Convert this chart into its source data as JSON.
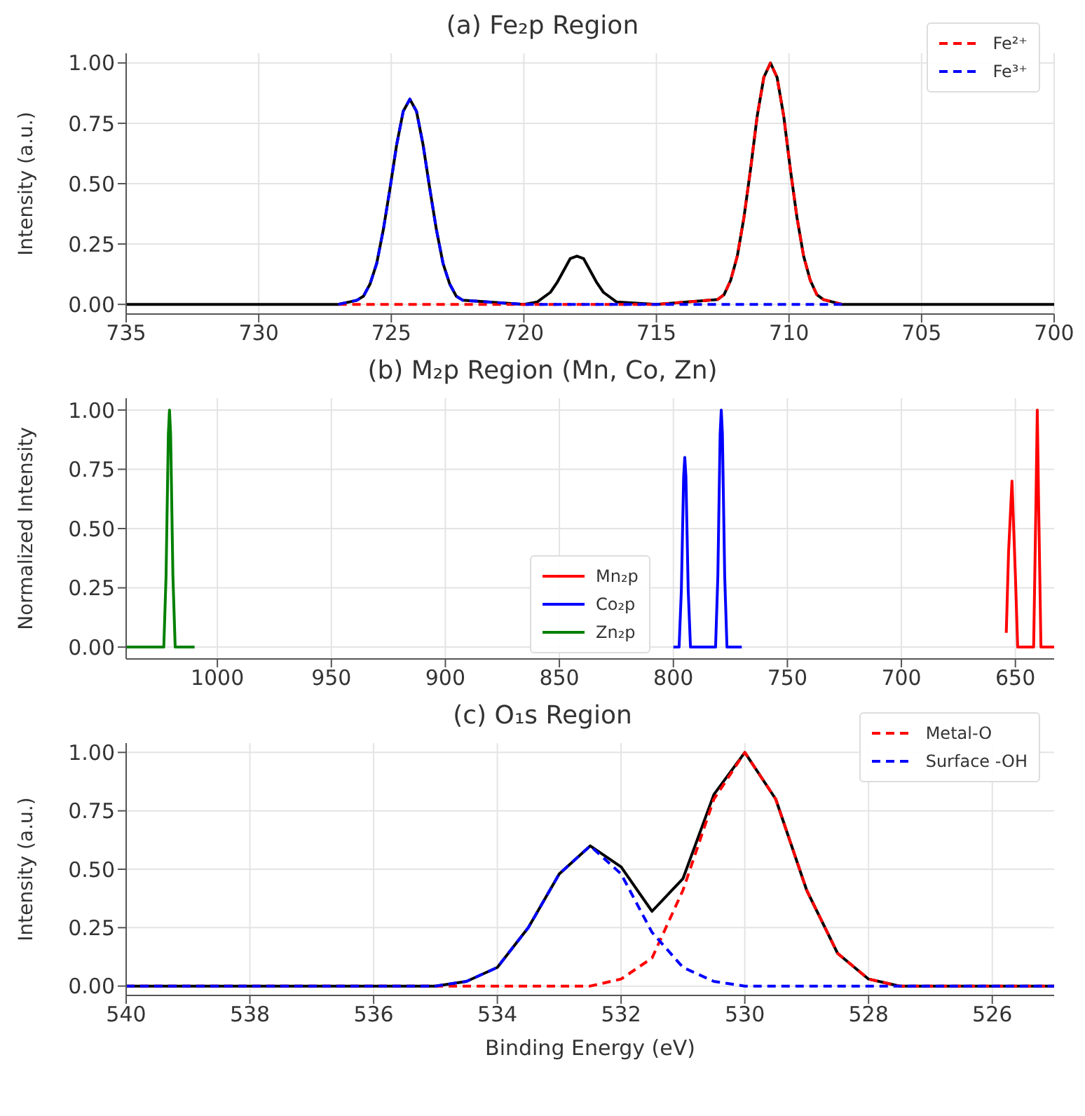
{
  "chart_data": [
    {
      "type": "line",
      "title": "(a) Fe₂p Region",
      "ylabel": "Intensity (a.u.)",
      "xlim": [
        735,
        700
      ],
      "xticks": [
        735,
        730,
        725,
        720,
        715,
        710,
        705,
        700
      ],
      "ylim": [
        -0.04,
        1.04
      ],
      "yticks": [
        {
          "value": 0,
          "label": "0.00"
        },
        {
          "value": 0.25,
          "label": "0.25"
        },
        {
          "value": 0.5,
          "label": "0.50"
        },
        {
          "value": 0.75,
          "label": "0.75"
        },
        {
          "value": 1,
          "label": "1.00"
        }
      ],
      "grid": true,
      "legend": "top right",
      "series": [
        {
          "color": "#000000",
          "line_style": "solid",
          "x": [
            735,
            727,
            726.3,
            726.05,
            725.8,
            725.55,
            725.3,
            725.05,
            724.8,
            724.55,
            724.3,
            724.05,
            723.8,
            723.55,
            723.3,
            723.05,
            722.8,
            722.55,
            722.3,
            720,
            719.5,
            719,
            718.75,
            718.5,
            718.25,
            718,
            717.75,
            717.5,
            717.25,
            717,
            716.5,
            715,
            712.7,
            712.45,
            712.2,
            711.95,
            711.7,
            711.45,
            711.2,
            710.95,
            710.7,
            710.45,
            710.2,
            709.95,
            709.7,
            709.45,
            709.2,
            708.95,
            708.7,
            708,
            700
          ],
          "values": [
            0,
            0,
            0.017,
            0.034,
            0.085,
            0.17,
            0.31,
            0.48,
            0.66,
            0.8,
            0.85,
            0.8,
            0.66,
            0.48,
            0.31,
            0.17,
            0.085,
            0.034,
            0.017,
            0,
            0.01,
            0.05,
            0.09,
            0.14,
            0.19,
            0.2,
            0.19,
            0.14,
            0.09,
            0.05,
            0.01,
            0,
            0.02,
            0.04,
            0.1,
            0.2,
            0.36,
            0.56,
            0.78,
            0.94,
            1,
            0.94,
            0.78,
            0.56,
            0.36,
            0.2,
            0.1,
            0.04,
            0.02,
            0,
            0
          ]
        },
        {
          "name": "Fe²⁺",
          "color": "#ff0000",
          "line_style": "dashed",
          "x": [
            727,
            715,
            712.7,
            712.45,
            712.2,
            711.95,
            711.7,
            711.45,
            711.2,
            710.95,
            710.7,
            710.45,
            710.2,
            709.95,
            709.7,
            709.45,
            709.2,
            708.95,
            708.7,
            708
          ],
          "values": [
            0,
            0,
            0.02,
            0.04,
            0.1,
            0.2,
            0.36,
            0.56,
            0.78,
            0.94,
            1,
            0.94,
            0.78,
            0.56,
            0.36,
            0.2,
            0.1,
            0.04,
            0.02,
            0
          ]
        },
        {
          "name": "Fe³⁺",
          "color": "#0000ff",
          "line_style": "dashed",
          "x": [
            727,
            726.3,
            726.05,
            725.8,
            725.55,
            725.3,
            725.05,
            724.8,
            724.55,
            724.3,
            724.05,
            723.8,
            723.55,
            723.3,
            723.05,
            722.8,
            722.55,
            722.3,
            720,
            708
          ],
          "values": [
            0,
            0.017,
            0.034,
            0.085,
            0.17,
            0.31,
            0.48,
            0.66,
            0.8,
            0.85,
            0.8,
            0.66,
            0.48,
            0.31,
            0.17,
            0.085,
            0.034,
            0.017,
            0,
            0
          ]
        }
      ]
    },
    {
      "type": "line",
      "title": "(b) M₂p Region (Mn, Co, Zn)",
      "ylabel": "Normalized Intensity",
      "xlim": [
        1040,
        633
      ],
      "xticks": [
        1000,
        950,
        900,
        850,
        800,
        750,
        700,
        650
      ],
      "ylim": [
        -0.05,
        1.05
      ],
      "yticks": [
        {
          "value": 0,
          "label": "0.00"
        },
        {
          "value": 0.25,
          "label": "0.25"
        },
        {
          "value": 0.5,
          "label": "0.50"
        },
        {
          "value": 0.75,
          "label": "0.75"
        },
        {
          "value": 1,
          "label": "1.00"
        }
      ],
      "grid": true,
      "legend": "bottom",
      "series": [
        {
          "name": "Mn₂p",
          "color": "#ff0000",
          "line_style": "solid",
          "x": [
            654,
            653,
            651.5,
            650,
            649,
            642,
            641,
            640.4,
            639.8,
            638.8,
            633
          ],
          "values": [
            0.06,
            0.4,
            0.7,
            0.3,
            0,
            0,
            0.6,
            1,
            0.6,
            0,
            0
          ]
        },
        {
          "name": "Co₂p",
          "color": "#0000ff",
          "line_style": "solid",
          "x": [
            800,
            797.5,
            796.5,
            795.5,
            795,
            794.5,
            793.5,
            792.5,
            781.5,
            780.5,
            779.5,
            779,
            778.5,
            777.5,
            776.5,
            770
          ],
          "values": [
            0,
            0,
            0.24,
            0.72,
            0.8,
            0.72,
            0.24,
            0,
            0,
            0.3,
            0.9,
            1,
            0.9,
            0.3,
            0,
            0
          ]
        },
        {
          "name": "Zn₂p",
          "color": "#008000",
          "line_style": "solid",
          "x": [
            1040,
            1023.5,
            1022.5,
            1021.5,
            1021,
            1020.5,
            1019.5,
            1018.5,
            1010
          ],
          "values": [
            0,
            0,
            0.3,
            0.9,
            1,
            0.9,
            0.3,
            0,
            0
          ]
        }
      ]
    },
    {
      "type": "line",
      "title": "(c) O₁s Region",
      "xlabel": "Binding Energy (eV)",
      "ylabel": "Intensity (a.u.)",
      "xlim": [
        540,
        525
      ],
      "xticks": [
        540,
        538,
        536,
        534,
        532,
        530,
        528,
        526
      ],
      "ylim": [
        -0.04,
        1.04
      ],
      "yticks": [
        {
          "value": 0,
          "label": "0.00"
        },
        {
          "value": 0.25,
          "label": "0.25"
        },
        {
          "value": 0.5,
          "label": "0.50"
        },
        {
          "value": 0.75,
          "label": "0.75"
        },
        {
          "value": 1,
          "label": "1.00"
        }
      ],
      "grid": true,
      "legend": "top right",
      "series": [
        {
          "color": "#000000",
          "line_style": "solid",
          "x": [
            540,
            535,
            534.5,
            534,
            533.5,
            533,
            532.5,
            532,
            531.5,
            531,
            530.5,
            530,
            529.5,
            529,
            528.5,
            528,
            527.5,
            525
          ],
          "values": [
            0,
            0,
            0.02,
            0.08,
            0.25,
            0.48,
            0.6,
            0.51,
            0.32,
            0.46,
            0.82,
            1,
            0.8,
            0.41,
            0.14,
            0.03,
            0,
            0
          ]
        },
        {
          "name": "Metal-O",
          "color": "#ff0000",
          "line_style": "dashed",
          "x": [
            540,
            533,
            532.5,
            532,
            531.5,
            531,
            530.5,
            530,
            529.5,
            529,
            528.5,
            528,
            527.5,
            525
          ],
          "values": [
            0,
            0,
            0,
            0.03,
            0.12,
            0.41,
            0.8,
            1,
            0.8,
            0.41,
            0.14,
            0.03,
            0,
            0
          ]
        },
        {
          "name": "Surface -OH",
          "color": "#0000ff",
          "line_style": "dashed",
          "x": [
            540,
            535,
            534.5,
            534,
            533.5,
            533,
            532.5,
            532,
            531.5,
            531,
            530.5,
            530,
            525
          ],
          "values": [
            0,
            0,
            0.02,
            0.08,
            0.25,
            0.48,
            0.6,
            0.48,
            0.23,
            0.08,
            0.02,
            0,
            0
          ]
        }
      ]
    }
  ]
}
